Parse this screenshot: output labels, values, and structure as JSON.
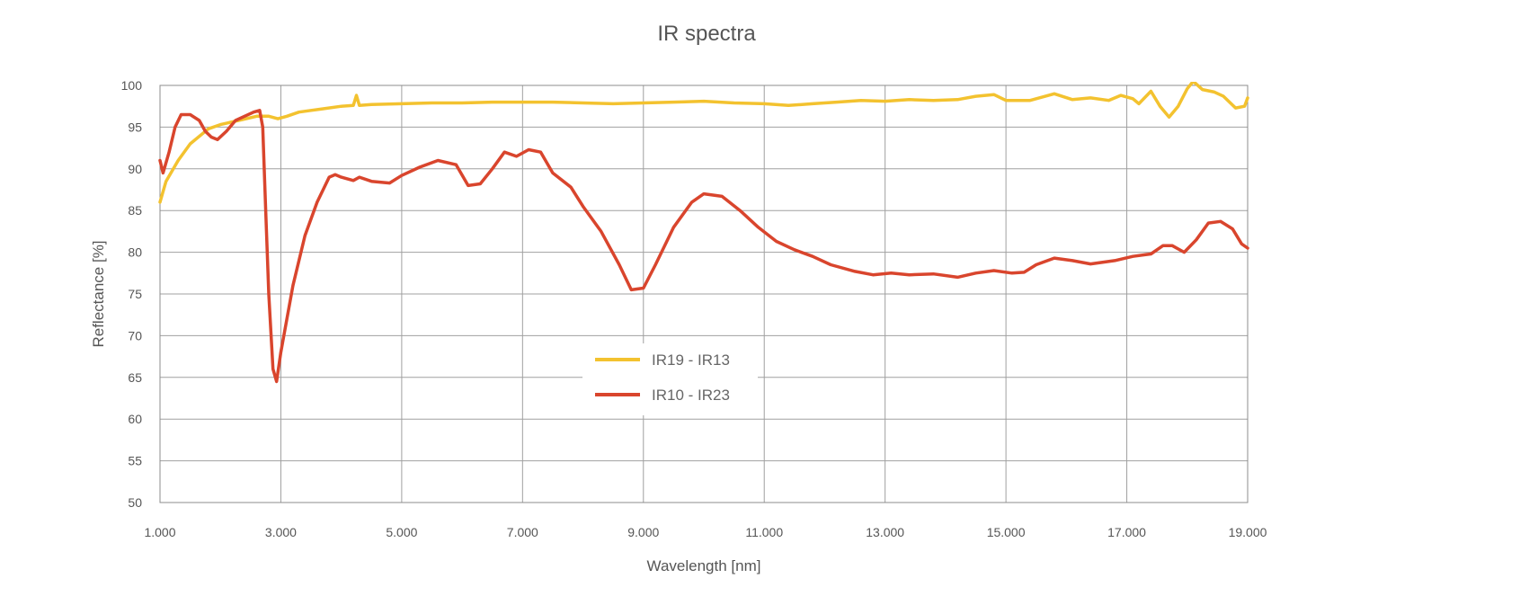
{
  "chart_data": {
    "type": "line",
    "title": "IR spectra",
    "xlabel": "Wavelength [nm]",
    "ylabel": "Reflectance [%]",
    "xlim": [
      1000,
      19000
    ],
    "ylim": [
      50,
      100
    ],
    "x_ticks": [
      1000,
      3000,
      5000,
      7000,
      9000,
      11000,
      13000,
      15000,
      17000,
      19000
    ],
    "x_tick_labels": [
      "1.000",
      "3.000",
      "5.000",
      "7.000",
      "9.000",
      "11.000",
      "13.000",
      "15.000",
      "17.000",
      "19.000"
    ],
    "y_ticks": [
      50,
      55,
      60,
      65,
      70,
      75,
      80,
      85,
      90,
      95,
      100
    ],
    "y_tick_labels": [
      "50",
      "55",
      "60",
      "65",
      "70",
      "75",
      "80",
      "85",
      "90",
      "95",
      "100"
    ],
    "grid": true,
    "legend_position": "center",
    "series": [
      {
        "name": "IR19 - IR13",
        "color": "#f3c22f",
        "points": [
          [
            1000,
            86
          ],
          [
            1100,
            88.5
          ],
          [
            1300,
            91
          ],
          [
            1500,
            93
          ],
          [
            1800,
            94.8
          ],
          [
            2000,
            95.3
          ],
          [
            2300,
            95.8
          ],
          [
            2600,
            96.3
          ],
          [
            2800,
            96.3
          ],
          [
            2950,
            96.0
          ],
          [
            3100,
            96.3
          ],
          [
            3300,
            96.8
          ],
          [
            3500,
            97.0
          ],
          [
            3700,
            97.2
          ],
          [
            4000,
            97.5
          ],
          [
            4200,
            97.6
          ],
          [
            4250,
            98.8
          ],
          [
            4300,
            97.6
          ],
          [
            4500,
            97.7
          ],
          [
            5000,
            97.8
          ],
          [
            5500,
            97.9
          ],
          [
            6000,
            97.9
          ],
          [
            6500,
            98.0
          ],
          [
            7000,
            98.0
          ],
          [
            7500,
            98.0
          ],
          [
            8000,
            97.9
          ],
          [
            8500,
            97.8
          ],
          [
            9000,
            97.9
          ],
          [
            9500,
            98.0
          ],
          [
            10000,
            98.1
          ],
          [
            10500,
            97.9
          ],
          [
            11000,
            97.8
          ],
          [
            11400,
            97.6
          ],
          [
            11800,
            97.8
          ],
          [
            12200,
            98.0
          ],
          [
            12600,
            98.2
          ],
          [
            13000,
            98.1
          ],
          [
            13400,
            98.3
          ],
          [
            13800,
            98.2
          ],
          [
            14200,
            98.3
          ],
          [
            14500,
            98.7
          ],
          [
            14800,
            98.9
          ],
          [
            15000,
            98.2
          ],
          [
            15400,
            98.2
          ],
          [
            15800,
            99.0
          ],
          [
            16100,
            98.3
          ],
          [
            16400,
            98.5
          ],
          [
            16700,
            98.2
          ],
          [
            16900,
            98.8
          ],
          [
            17100,
            98.4
          ],
          [
            17200,
            97.8
          ],
          [
            17400,
            99.3
          ],
          [
            17550,
            97.5
          ],
          [
            17700,
            96.2
          ],
          [
            17850,
            97.5
          ],
          [
            18000,
            99.6
          ],
          [
            18100,
            100.5
          ],
          [
            18250,
            99.5
          ],
          [
            18450,
            99.2
          ],
          [
            18600,
            98.7
          ],
          [
            18800,
            97.3
          ],
          [
            18950,
            97.5
          ],
          [
            19000,
            98.5
          ]
        ]
      },
      {
        "name": "IR10 - IR23",
        "color": "#d9452d",
        "points": [
          [
            1000,
            91
          ],
          [
            1050,
            89.5
          ],
          [
            1150,
            92
          ],
          [
            1250,
            95
          ],
          [
            1350,
            96.5
          ],
          [
            1500,
            96.5
          ],
          [
            1650,
            95.8
          ],
          [
            1750,
            94.5
          ],
          [
            1850,
            93.8
          ],
          [
            1950,
            93.5
          ],
          [
            2100,
            94.5
          ],
          [
            2250,
            95.8
          ],
          [
            2400,
            96.3
          ],
          [
            2550,
            96.8
          ],
          [
            2650,
            97.0
          ],
          [
            2700,
            95.0
          ],
          [
            2750,
            85
          ],
          [
            2800,
            75
          ],
          [
            2870,
            66
          ],
          [
            2930,
            64.5
          ],
          [
            3000,
            68
          ],
          [
            3200,
            76
          ],
          [
            3400,
            82
          ],
          [
            3600,
            86
          ],
          [
            3800,
            89.0
          ],
          [
            3900,
            89.3
          ],
          [
            4000,
            89.0
          ],
          [
            4200,
            88.6
          ],
          [
            4300,
            89.0
          ],
          [
            4500,
            88.5
          ],
          [
            4800,
            88.3
          ],
          [
            5000,
            89.2
          ],
          [
            5300,
            90.2
          ],
          [
            5600,
            91.0
          ],
          [
            5900,
            90.5
          ],
          [
            6100,
            88.0
          ],
          [
            6300,
            88.2
          ],
          [
            6500,
            90.0
          ],
          [
            6700,
            92.0
          ],
          [
            6900,
            91.5
          ],
          [
            7100,
            92.3
          ],
          [
            7300,
            92.0
          ],
          [
            7500,
            89.5
          ],
          [
            7800,
            87.8
          ],
          [
            8000,
            85.5
          ],
          [
            8300,
            82.5
          ],
          [
            8600,
            78.5
          ],
          [
            8800,
            75.5
          ],
          [
            9000,
            75.7
          ],
          [
            9200,
            78.5
          ],
          [
            9500,
            83.0
          ],
          [
            9800,
            86.0
          ],
          [
            10000,
            87.0
          ],
          [
            10300,
            86.7
          ],
          [
            10600,
            85.0
          ],
          [
            10900,
            83.0
          ],
          [
            11200,
            81.3
          ],
          [
            11500,
            80.3
          ],
          [
            11800,
            79.5
          ],
          [
            12100,
            78.5
          ],
          [
            12500,
            77.7
          ],
          [
            12800,
            77.3
          ],
          [
            13100,
            77.5
          ],
          [
            13400,
            77.3
          ],
          [
            13800,
            77.4
          ],
          [
            14200,
            77.0
          ],
          [
            14500,
            77.5
          ],
          [
            14800,
            77.8
          ],
          [
            15100,
            77.5
          ],
          [
            15300,
            77.6
          ],
          [
            15500,
            78.5
          ],
          [
            15800,
            79.3
          ],
          [
            16100,
            79.0
          ],
          [
            16400,
            78.6
          ],
          [
            16800,
            79.0
          ],
          [
            17100,
            79.5
          ],
          [
            17400,
            79.8
          ],
          [
            17600,
            80.8
          ],
          [
            17750,
            80.8
          ],
          [
            17950,
            80.0
          ],
          [
            18150,
            81.5
          ],
          [
            18350,
            83.5
          ],
          [
            18550,
            83.7
          ],
          [
            18750,
            82.8
          ],
          [
            18900,
            81.0
          ],
          [
            19000,
            80.5
          ]
        ]
      }
    ]
  }
}
